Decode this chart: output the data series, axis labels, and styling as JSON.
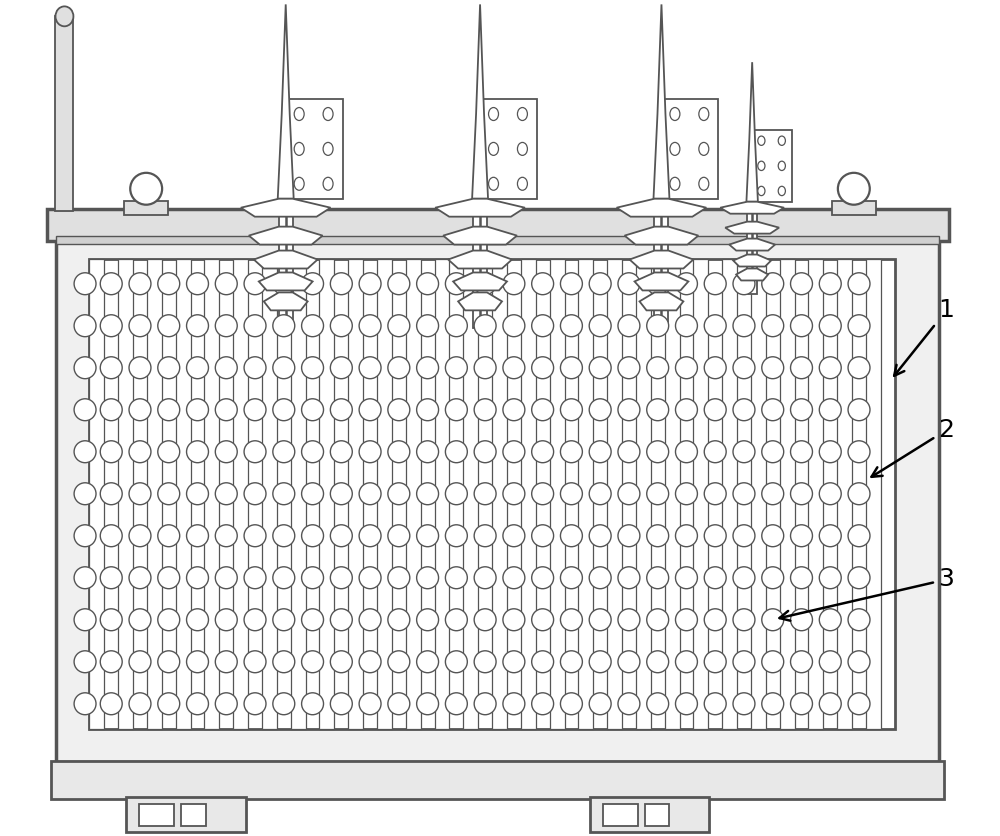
{
  "bg_color": "#ffffff",
  "line_color": "#555555",
  "lw_main": 2.0,
  "lw_detail": 1.3,
  "fig_width": 10.0,
  "fig_height": 8.36
}
